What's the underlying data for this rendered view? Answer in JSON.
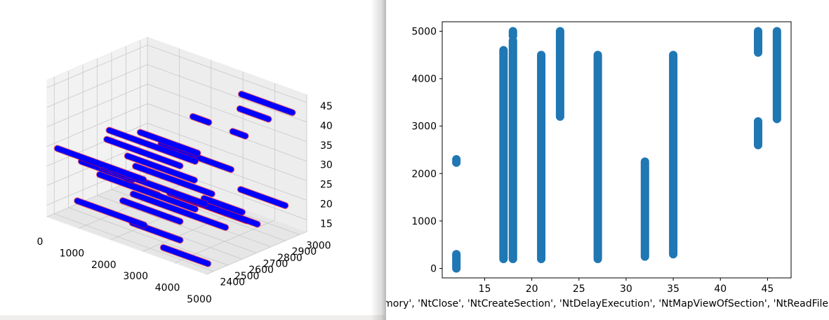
{
  "colors": {
    "scatter3d_face": "#0000ff",
    "scatter3d_edge": "#ff0000",
    "scatter2d": "#1f77b4",
    "pane": "#f2f2f2",
    "divider": "#888888"
  },
  "chart_data": [
    {
      "type": "scatter",
      "projection": "3d",
      "x_ticks": [
        "0",
        "1000",
        "2000",
        "3000",
        "4000",
        "5000"
      ],
      "y_ticks": [
        "2400",
        "2500",
        "2600",
        "2700",
        "2800",
        "2900",
        "3000"
      ],
      "z_ticks": [
        "15",
        "20",
        "25",
        "30",
        "35",
        "40",
        "45"
      ],
      "xlim": [
        0,
        5000
      ],
      "ylim": [
        2350,
        3050
      ],
      "zlim": [
        12,
        47
      ],
      "grid": true,
      "segments": [
        {
          "z": 44,
          "y": 2950,
          "x": [
            3400,
            5000
          ]
        },
        {
          "z": 43,
          "y": 2850,
          "x": [
            3800,
            4700
          ]
        },
        {
          "z": 41,
          "y": 2700,
          "x": [
            3000,
            3500
          ]
        },
        {
          "z": 38,
          "y": 2800,
          "x": [
            3800,
            4200
          ]
        },
        {
          "z": 37,
          "y": 2450,
          "x": [
            1500,
            4200
          ]
        },
        {
          "z": 35,
          "y": 2600,
          "x": [
            1800,
            3600
          ]
        },
        {
          "z": 33,
          "y": 2500,
          "x": [
            1200,
            3500
          ]
        },
        {
          "z": 31,
          "y": 2700,
          "x": [
            2000,
            4200
          ]
        },
        {
          "z": 29,
          "y": 2400,
          "x": [
            100,
            2800
          ]
        },
        {
          "z": 27,
          "y": 2450,
          "x": [
            1300,
            4500
          ]
        },
        {
          "z": 25,
          "y": 2500,
          "x": [
            400,
            2000
          ]
        },
        {
          "z": 24,
          "y": 2600,
          "x": [
            3800,
            5000
          ]
        },
        {
          "z": 23,
          "y": 2700,
          "x": [
            1200,
            3600
          ]
        },
        {
          "z": 22,
          "y": 2800,
          "x": [
            500,
            2600
          ]
        },
        {
          "z": 21,
          "y": 2900,
          "x": [
            3600,
            5000
          ]
        },
        {
          "z": 20,
          "y": 2550,
          "x": [
            1800,
            4700
          ]
        },
        {
          "z": 19,
          "y": 2650,
          "x": [
            300,
            3300
          ]
        },
        {
          "z": 18,
          "y": 2750,
          "x": [
            2200,
            4800
          ]
        },
        {
          "z": 16,
          "y": 2450,
          "x": [
            500,
            2600
          ]
        },
        {
          "z": 15,
          "y": 2850,
          "x": [
            1600,
            4000
          ]
        },
        {
          "z": 14,
          "y": 2500,
          "x": [
            2000,
            3500
          ]
        },
        {
          "z": 13,
          "y": 2700,
          "x": [
            800,
            2600
          ]
        },
        {
          "z": 12,
          "y": 2450,
          "x": [
            3200,
            4600
          ]
        },
        {
          "z": 12,
          "y": 2900,
          "x": [
            0,
            1000
          ]
        }
      ]
    },
    {
      "type": "scatter",
      "xlim": [
        10.5,
        47.5
      ],
      "ylim": [
        -200,
        5200
      ],
      "x_ticks": [
        15,
        20,
        25,
        30,
        35,
        40,
        45
      ],
      "y_ticks": [
        0,
        1000,
        2000,
        3000,
        4000,
        5000
      ],
      "xlabel": "mory', 'NtClose', 'NtCreateSection', 'NtDelayExecution', 'NtMapViewOfSection', 'NtReadFile'",
      "ylabel": "",
      "series": [
        {
          "x": 12,
          "y_ranges": [
            [
              0,
              300
            ],
            [
              2230,
              2300
            ]
          ]
        },
        {
          "x": 17,
          "y_ranges": [
            [
              200,
              4600
            ]
          ]
        },
        {
          "x": 18,
          "y_ranges": [
            [
              200,
              4800
            ],
            [
              4900,
              5000
            ]
          ]
        },
        {
          "x": 21,
          "y_ranges": [
            [
              200,
              4500
            ]
          ]
        },
        {
          "x": 23,
          "y_ranges": [
            [
              3200,
              5000
            ]
          ]
        },
        {
          "x": 27,
          "y_ranges": [
            [
              200,
              4500
            ]
          ]
        },
        {
          "x": 32,
          "y_ranges": [
            [
              250,
              2250
            ]
          ]
        },
        {
          "x": 35,
          "y_ranges": [
            [
              300,
              4500
            ]
          ]
        },
        {
          "x": 44,
          "y_ranges": [
            [
              2600,
              3100
            ],
            [
              4550,
              5000
            ]
          ]
        },
        {
          "x": 46,
          "y_ranges": [
            [
              3150,
              5000
            ]
          ]
        }
      ]
    }
  ]
}
